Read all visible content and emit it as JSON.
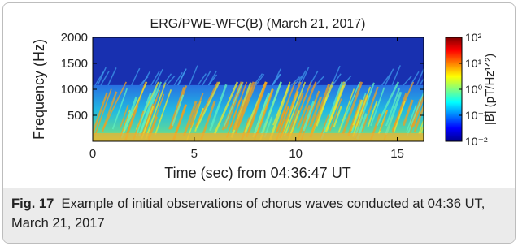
{
  "chart_data": {
    "type": "spectrogram",
    "title": "ERG/PWE-WFC(B) (March 21, 2017)",
    "xlabel": "Time (sec) from 04:36:47 UT",
    "ylabel": "Frequency (Hz)",
    "xlim": [
      0,
      16.3
    ],
    "xticks": [
      0,
      5,
      10,
      15
    ],
    "ylim": [
      0,
      2000
    ],
    "yticks": [
      500,
      1000,
      1500,
      2000
    ],
    "colorbar": {
      "label": "|B| (pT/Hz¹ᐟ²)",
      "scale": "log",
      "lim": [
        0.01,
        100
      ],
      "ticks": [
        {
          "value": 0.01,
          "label": "10⁻²"
        },
        {
          "value": 0.1,
          "label": "10⁻¹"
        },
        {
          "value": 1,
          "label": "10⁰"
        },
        {
          "value": 10,
          "label": "10¹"
        },
        {
          "value": 100,
          "label": "10²"
        }
      ]
    }
  },
  "caption": {
    "label": "Fig. 17",
    "text": "Example of initial observations of chorus waves conducted at 04:36 UT, March 21, 2017"
  }
}
